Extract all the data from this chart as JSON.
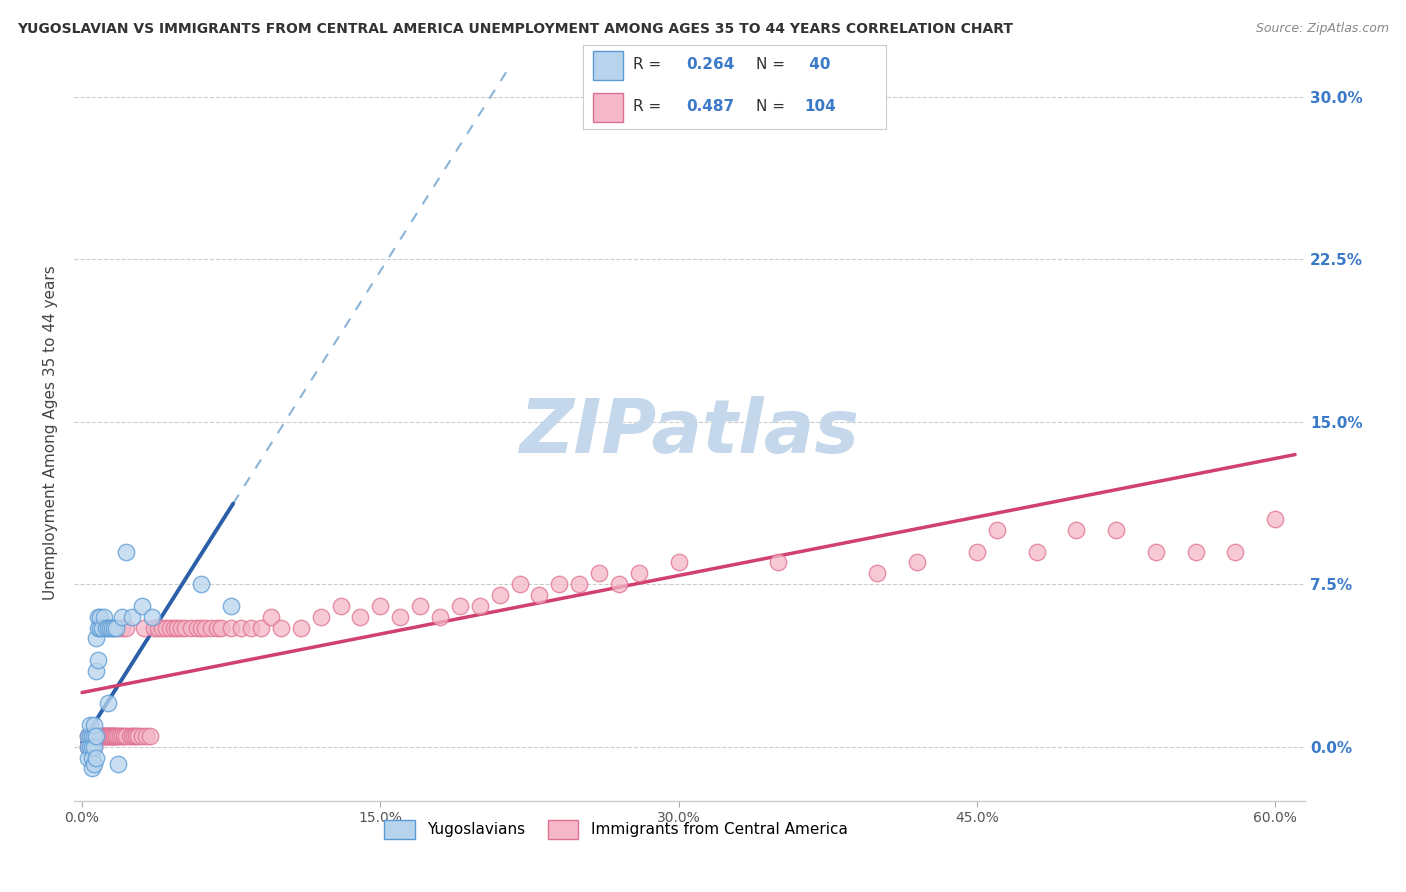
{
  "title": "YUGOSLAVIAN VS IMMIGRANTS FROM CENTRAL AMERICA UNEMPLOYMENT AMONG AGES 35 TO 44 YEARS CORRELATION CHART",
  "source": "Source: ZipAtlas.com",
  "ylabel": "Unemployment Among Ages 35 to 44 years",
  "series1_label": "Yugoslavians",
  "series1_fill_color": "#b8d4ed",
  "series1_edge_color": "#5b9bd5",
  "series1_line_color": "#2b5fa8",
  "series1_R": 0.264,
  "series1_N": 40,
  "series2_label": "Immigrants from Central America",
  "series2_fill_color": "#f4b8c8",
  "series2_edge_color": "#e07090",
  "series2_line_color": "#d04070",
  "series2_R": 0.487,
  "series2_N": 104,
  "watermark": "ZIPatlas",
  "watermark_color": "#c5d8eb",
  "background_color": "#ffffff",
  "grid_color": "#cccccc",
  "x_min": -0.004,
  "x_max": 0.615,
  "y_min": -0.025,
  "y_max": 0.315,
  "yugoslav_x": [
    0.003,
    0.003,
    0.003,
    0.004,
    0.004,
    0.004,
    0.005,
    0.005,
    0.005,
    0.005,
    0.006,
    0.006,
    0.006,
    0.006,
    0.007,
    0.007,
    0.007,
    0.007,
    0.008,
    0.008,
    0.008,
    0.009,
    0.009,
    0.01,
    0.011,
    0.012,
    0.013,
    0.013,
    0.014,
    0.015,
    0.016,
    0.017,
    0.018,
    0.02,
    0.022,
    0.025,
    0.03,
    0.035,
    0.06,
    0.075
  ],
  "yugoslav_y": [
    0.005,
    0.0,
    -0.005,
    0.005,
    0.01,
    0.0,
    0.005,
    0.0,
    -0.005,
    -0.01,
    0.005,
    0.01,
    0.0,
    -0.008,
    0.05,
    0.035,
    0.005,
    -0.005,
    0.06,
    0.055,
    0.04,
    0.055,
    0.06,
    0.055,
    0.06,
    0.055,
    0.055,
    0.02,
    0.055,
    0.055,
    0.055,
    0.055,
    -0.008,
    0.06,
    0.09,
    0.06,
    0.065,
    0.06,
    0.075,
    0.065
  ],
  "central_x": [
    0.003,
    0.003,
    0.004,
    0.004,
    0.004,
    0.005,
    0.005,
    0.005,
    0.006,
    0.006,
    0.006,
    0.007,
    0.007,
    0.007,
    0.008,
    0.008,
    0.009,
    0.009,
    0.01,
    0.01,
    0.011,
    0.011,
    0.012,
    0.012,
    0.013,
    0.013,
    0.014,
    0.014,
    0.015,
    0.015,
    0.016,
    0.016,
    0.017,
    0.017,
    0.018,
    0.018,
    0.019,
    0.02,
    0.02,
    0.021,
    0.022,
    0.022,
    0.024,
    0.025,
    0.026,
    0.027,
    0.028,
    0.03,
    0.031,
    0.032,
    0.034,
    0.036,
    0.038,
    0.04,
    0.042,
    0.044,
    0.046,
    0.048,
    0.05,
    0.052,
    0.055,
    0.058,
    0.06,
    0.062,
    0.065,
    0.068,
    0.07,
    0.075,
    0.08,
    0.085,
    0.09,
    0.095,
    0.1,
    0.11,
    0.12,
    0.13,
    0.14,
    0.15,
    0.16,
    0.17,
    0.18,
    0.19,
    0.2,
    0.21,
    0.22,
    0.23,
    0.24,
    0.25,
    0.26,
    0.27,
    0.28,
    0.3,
    0.35,
    0.4,
    0.42,
    0.45,
    0.46,
    0.48,
    0.5,
    0.52,
    0.54,
    0.56,
    0.58,
    0.6
  ],
  "central_y": [
    0.005,
    0.0,
    0.005,
    0.005,
    0.0,
    0.005,
    0.0,
    0.005,
    0.005,
    0.005,
    0.0,
    0.005,
    0.005,
    0.005,
    0.005,
    0.005,
    0.005,
    0.005,
    0.005,
    0.005,
    0.005,
    0.005,
    0.005,
    0.005,
    0.005,
    0.005,
    0.005,
    0.005,
    0.005,
    0.005,
    0.005,
    0.005,
    0.005,
    0.005,
    0.005,
    0.055,
    0.005,
    0.005,
    0.055,
    0.005,
    0.005,
    0.055,
    0.005,
    0.005,
    0.005,
    0.005,
    0.005,
    0.005,
    0.055,
    0.005,
    0.005,
    0.055,
    0.055,
    0.055,
    0.055,
    0.055,
    0.055,
    0.055,
    0.055,
    0.055,
    0.055,
    0.055,
    0.055,
    0.055,
    0.055,
    0.055,
    0.055,
    0.055,
    0.055,
    0.055,
    0.055,
    0.06,
    0.055,
    0.055,
    0.06,
    0.065,
    0.06,
    0.065,
    0.06,
    0.065,
    0.06,
    0.065,
    0.065,
    0.07,
    0.075,
    0.07,
    0.075,
    0.075,
    0.08,
    0.075,
    0.08,
    0.085,
    0.085,
    0.08,
    0.085,
    0.09,
    0.1,
    0.09,
    0.1,
    0.1,
    0.09,
    0.09,
    0.09,
    0.105
  ]
}
